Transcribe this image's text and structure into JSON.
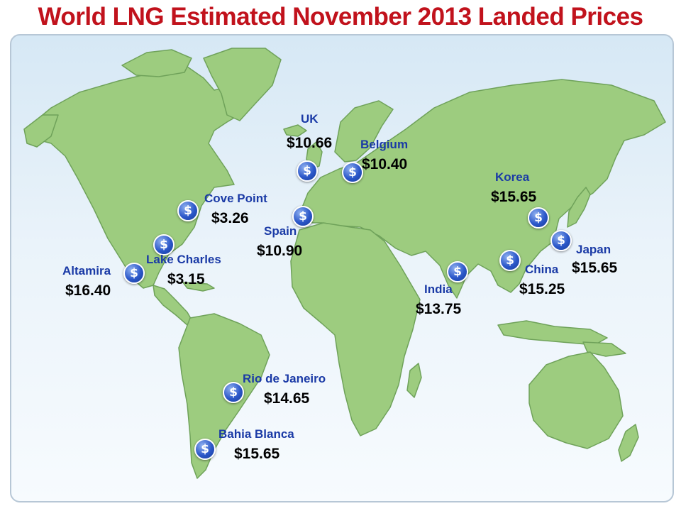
{
  "title": "World LNG Estimated November 2013 Landed Prices",
  "colors": {
    "title": "#c1121c",
    "land": "#9dcc7f",
    "land_edge": "#6fa25a",
    "ocean": "#e1eef8",
    "label": "#1a3aa6",
    "marker": "#2b57c9"
  },
  "marker_icon": "dollar-icon",
  "marker_symbol": "$",
  "locations": [
    {
      "name": "UK",
      "price": "$10.66"
    },
    {
      "name": "Belgium",
      "price": "$10.40"
    },
    {
      "name": "Cove Point",
      "price": "$3.26"
    },
    {
      "name": "Spain",
      "price": "$10.90"
    },
    {
      "name": "Lake Charles",
      "price": "$3.15"
    },
    {
      "name": "Altamira",
      "price": "$16.40"
    },
    {
      "name": "Korea",
      "price": "$15.65"
    },
    {
      "name": "Japan",
      "price": "$15.65"
    },
    {
      "name": "China",
      "price": "$15.25"
    },
    {
      "name": "India",
      "price": "$13.75"
    },
    {
      "name": "Rio de Janeiro",
      "price": "$14.65"
    },
    {
      "name": "Bahia Blanca",
      "price": "$15.65"
    }
  ]
}
